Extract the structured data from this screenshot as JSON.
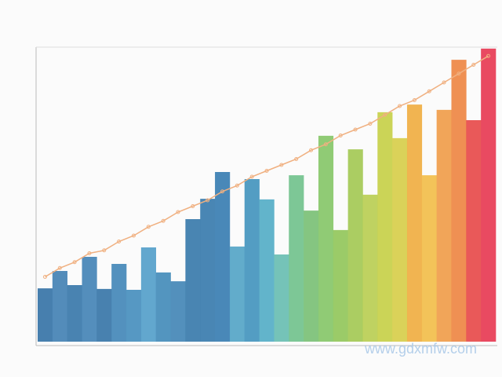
{
  "chart_data": {
    "type": "bar",
    "categories": [
      null,
      null,
      null,
      null,
      null,
      null,
      null,
      null,
      null,
      null,
      null,
      null,
      null,
      null,
      null,
      null,
      null,
      null,
      null,
      null,
      null,
      null,
      null,
      null,
      null,
      null,
      null,
      null,
      null,
      null,
      null
    ],
    "values": [
      18.1,
      24,
      19.2,
      28.8,
      17.9,
      26.4,
      17.6,
      32,
      23.5,
      20.5,
      41.6,
      48.5,
      57.6,
      32.3,
      55.2,
      48.3,
      29.6,
      56.5,
      44.5,
      69.9,
      37.9,
      65.3,
      49.9,
      77.9,
      69.1,
      80.5,
      56.5,
      78.7,
      95.7,
      75.2,
      99.5
    ],
    "colors": [
      "#3d78aa",
      "#4a86b6",
      "#3f7cad",
      "#4b88b8",
      "#3e7aab",
      "#4a8bbb",
      "#4d92c0",
      "#5aa2cb",
      "#4a8fbc",
      "#4a8ab8",
      "#3f7eae",
      "#3f80b0",
      "#3f82b4",
      "#5aa8c8",
      "#4a98c0",
      "#5ab0c8",
      "#6ec0b4",
      "#76c490",
      "#7ec27a",
      "#8ac86e",
      "#96c860",
      "#a6ca5a",
      "#bcd058",
      "#c8d24e",
      "#d8d050",
      "#f0b048",
      "#f2c050",
      "#f0a050",
      "#ee8a4a",
      "#e85050",
      "#e84058"
    ],
    "ylim": [
      0,
      100
    ],
    "line_values": [
      22,
      25,
      27,
      30,
      31,
      34,
      36,
      39,
      41,
      44,
      46,
      48,
      51,
      53,
      56,
      58,
      60,
      62,
      65,
      67,
      70,
      72,
      74,
      77,
      80,
      82,
      85,
      88,
      91,
      94,
      97
    ],
    "line_color": "#f0b080",
    "watermark": "www.gdxmfw.com"
  }
}
